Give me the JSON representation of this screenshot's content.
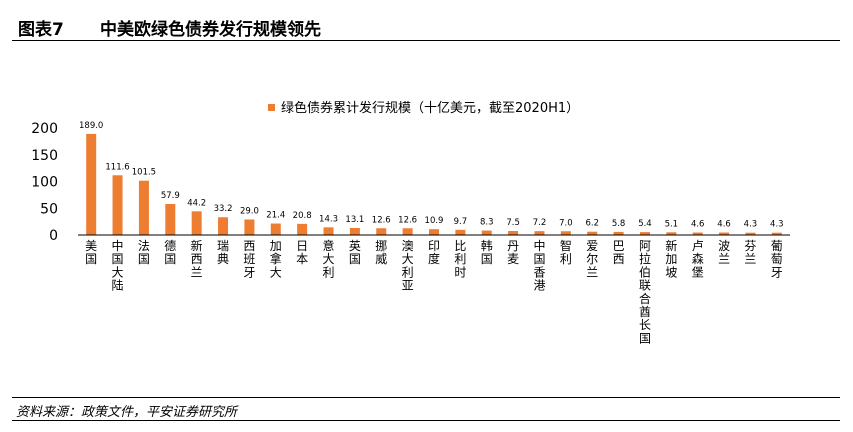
{
  "header": {
    "figure_label": "图表7",
    "title": "中美欧绿色债券发行规模领先"
  },
  "footer": {
    "source": "资料来源：政策文件，平安证券研究所"
  },
  "colors": {
    "bar": "#ED7D31",
    "axis": "#000000"
  },
  "chart_data": {
    "type": "bar",
    "title": "",
    "xlabel": "",
    "ylabel": "",
    "ylim": [
      0,
      200
    ],
    "yticks": [
      0,
      50,
      100,
      150,
      200
    ],
    "grid": false,
    "legend": "top",
    "categories": [
      "美国",
      "中国大陆",
      "法国",
      "德国",
      "新西兰",
      "瑞典",
      "西班牙",
      "加拿大",
      "日本",
      "意大利",
      "英国",
      "挪威",
      "澳大利亚",
      "印度",
      "比利时",
      "韩国",
      "丹麦",
      "中国香港",
      "智利",
      "爱尔兰",
      "巴西",
      "阿拉伯联合酋长国",
      "新加坡",
      "卢森堡",
      "波兰",
      "芬兰",
      "葡萄牙"
    ],
    "series": [
      {
        "name": "绿色债券累计发行规模（十亿美元，截至2020H1）",
        "values": [
          189.0,
          111.6,
          101.5,
          57.9,
          44.2,
          33.2,
          29.0,
          21.4,
          20.8,
          14.3,
          13.1,
          12.6,
          12.6,
          10.9,
          9.7,
          8.3,
          7.5,
          7.2,
          7.0,
          6.2,
          5.8,
          5.4,
          5.1,
          4.6,
          4.6,
          4.3,
          4.3
        ],
        "labels": [
          "189.0",
          "111.6",
          "101.5",
          "57.9",
          "44.2",
          "33.2",
          "29.0",
          "21.4",
          "20.8",
          "14.3",
          "13.1",
          "12.6",
          "12.6",
          "10.9",
          "9.7",
          "8.3",
          "7.5",
          "7.2",
          "7.0",
          "6.2",
          "5.8",
          "5.4",
          "5.1",
          "4.6",
          "4.6",
          "4.3",
          "4.3"
        ]
      }
    ]
  }
}
